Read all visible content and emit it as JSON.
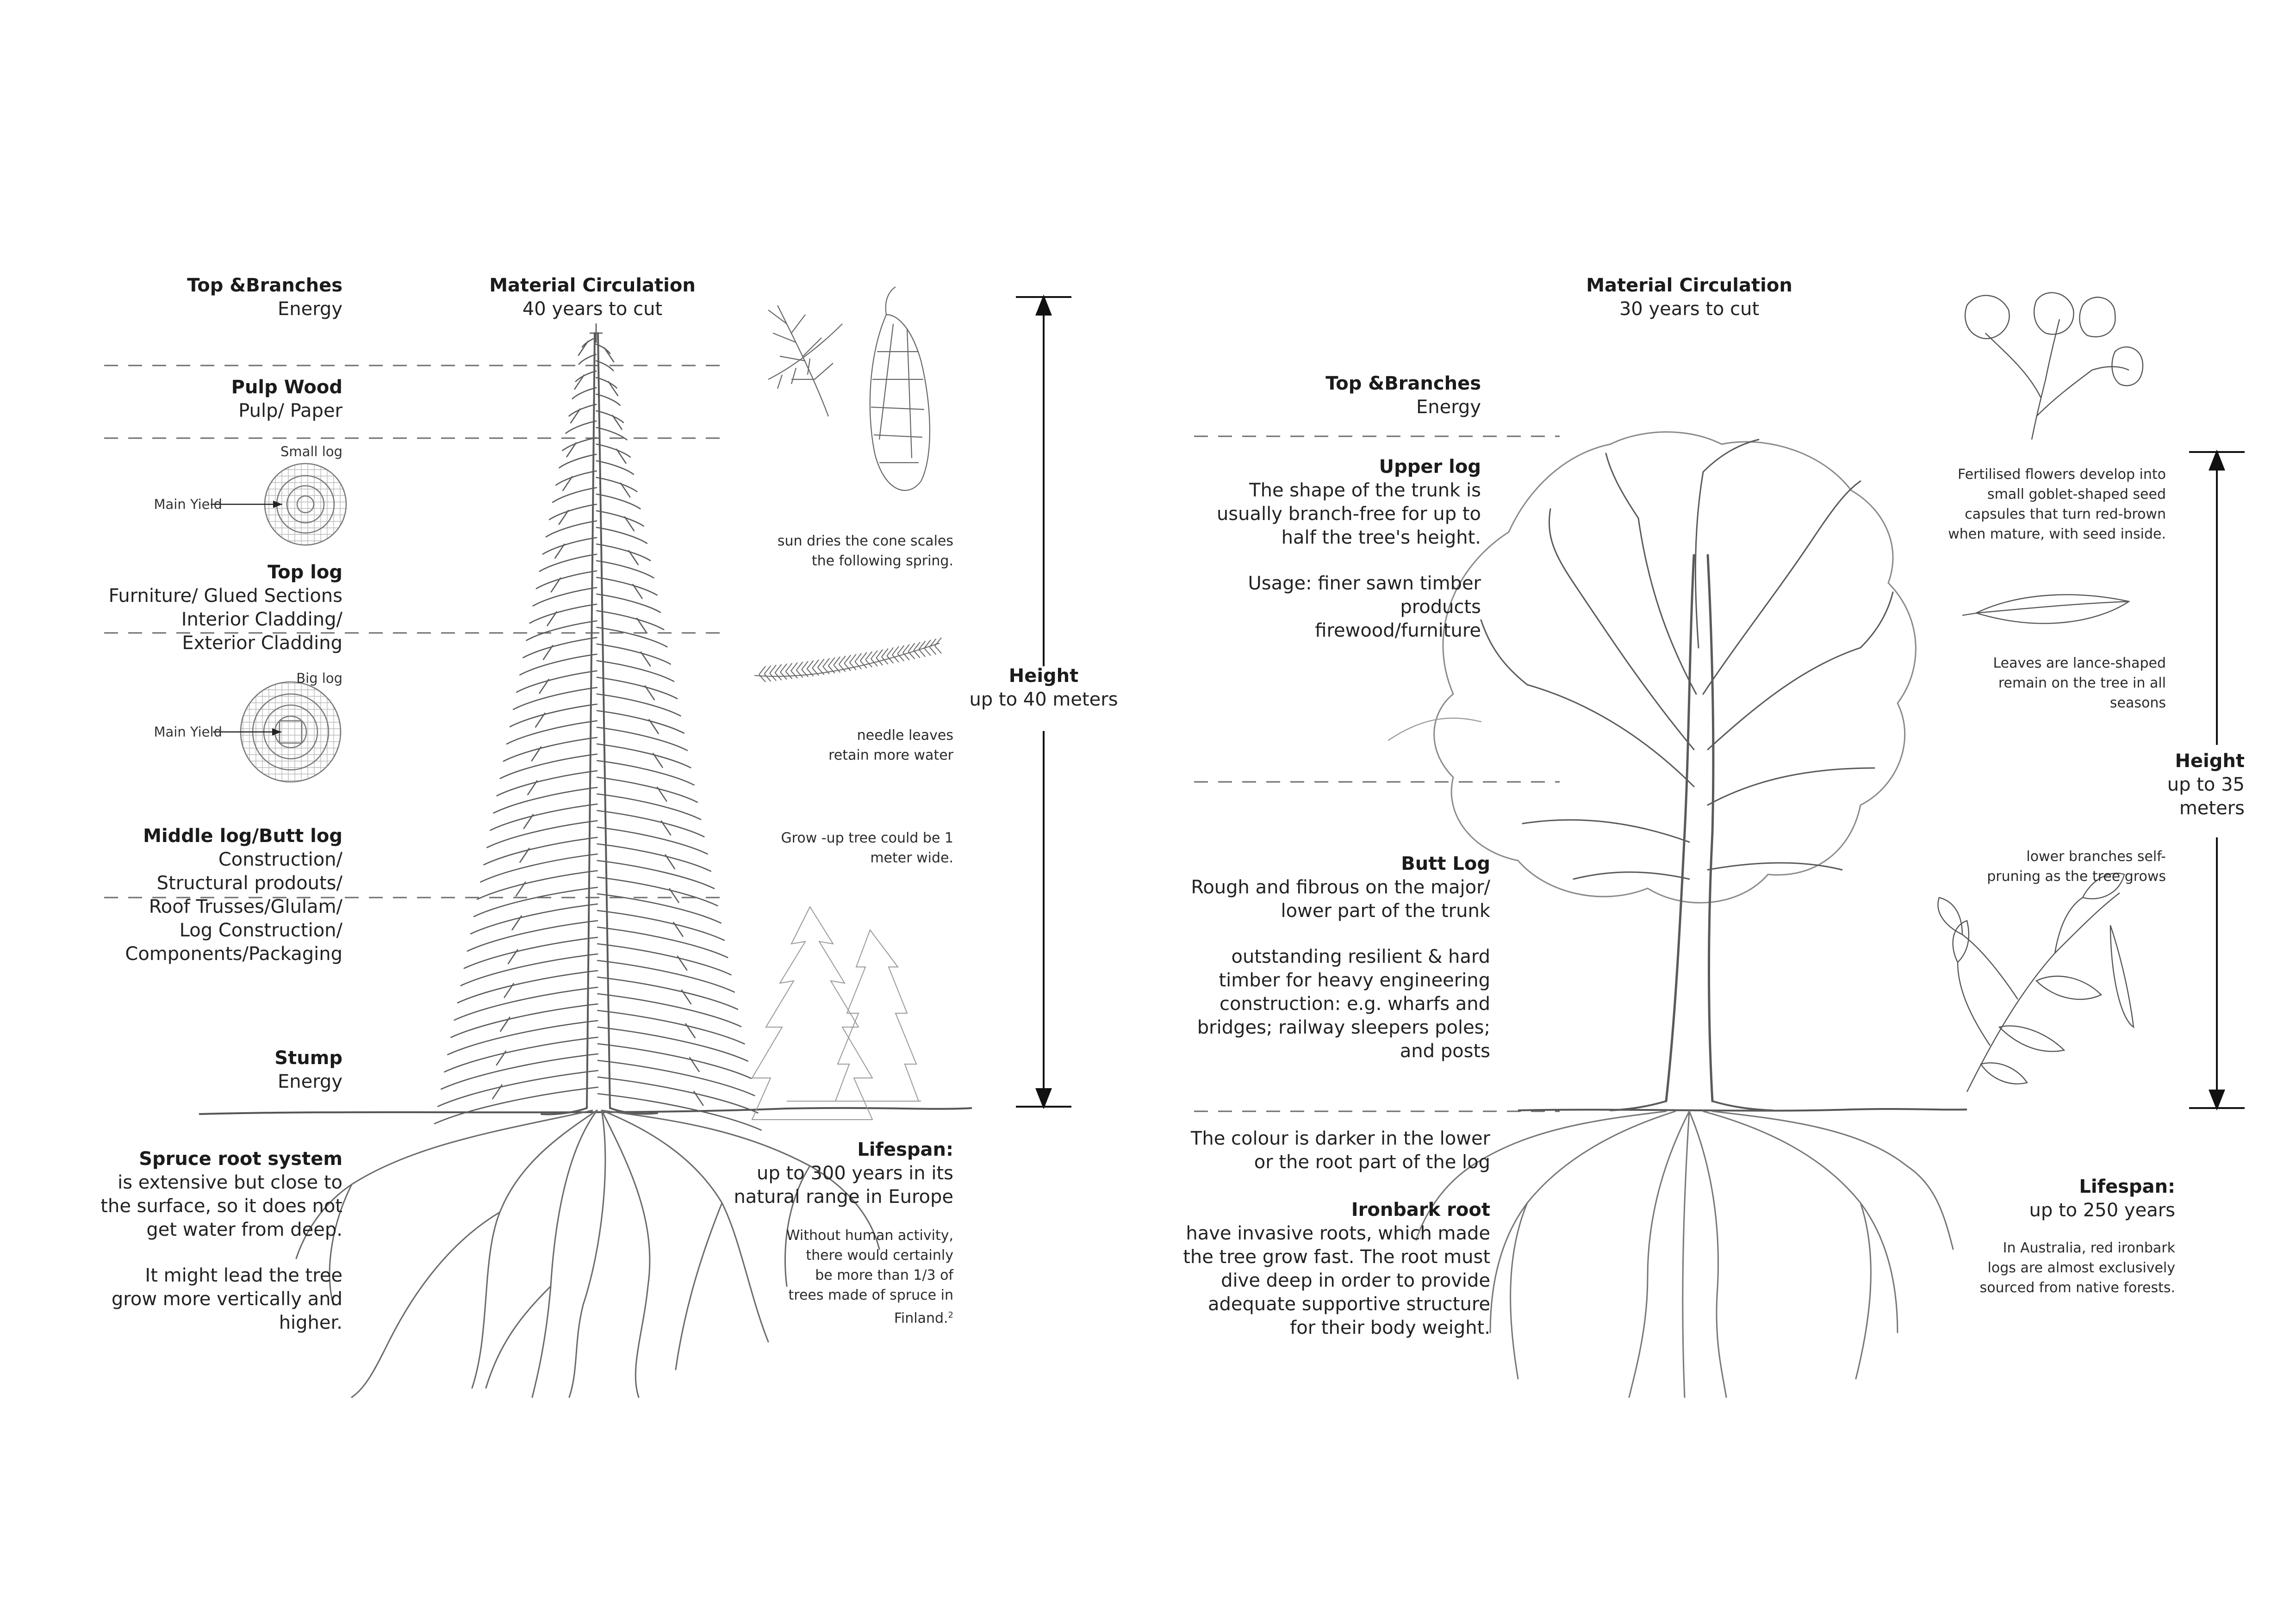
{
  "palette": {
    "ink": "#1b1b1b",
    "pencil": "#5a5a5a",
    "dash": "#6e6e6e",
    "paper": "#ffffff"
  },
  "spruce": {
    "top_branches": {
      "title": "Top &Branches",
      "use": "Energy"
    },
    "circulation": {
      "title": "Material Circulation",
      "value": "40 years to cut"
    },
    "pulp_wood": {
      "title": "Pulp Wood",
      "use": "Pulp/ Paper"
    },
    "small_log": {
      "label": "Small log",
      "yield": "Main Yield"
    },
    "top_log": {
      "title": "Top log",
      "use": "Furniture/ Glued Sections\nInterior Cladding/\nExterior Cladding"
    },
    "big_log": {
      "label": "Big log",
      "yield": "Main Yield"
    },
    "middle_log": {
      "title": "Middle log/Butt log",
      "use": "Construction/\nStructural prodouts/\nRoof Trusses/Glulam/\nLog Construction/\nComponents/Packaging"
    },
    "stump": {
      "title": "Stump",
      "use": "Energy"
    },
    "root": {
      "title": "Spruce root system",
      "text": "is extensive but close to\nthe surface, so it does not\nget water from deep.",
      "text2": "It might lead the tree\ngrow more vertically and\nhigher."
    },
    "height": {
      "title": "Height",
      "value": "up to 40 meters"
    },
    "cone_note": "sun dries the cone scales\nthe following spring.",
    "needle_note": "needle leaves\nretain more water",
    "grow_note": "Grow -up tree could be 1\nmeter wide.",
    "lifespan": {
      "title": "Lifespan:",
      "value": "up to 300 years in its\nnatural range in Europe",
      "note": "Without human activity,\nthere would certainly\nbe more than 1/3 of\ntrees  made of spruce in\nFinland.",
      "footnote": "2"
    }
  },
  "ironbark": {
    "circulation": {
      "title": "Material Circulation",
      "value": "30 years to cut"
    },
    "top_branches": {
      "title": "Top &Branches",
      "use": "Energy"
    },
    "upper_log": {
      "title": "Upper log",
      "text": "The shape of the trunk is\nusually branch-free for up to\nhalf the tree's height.",
      "usage": "Usage: finer sawn timber\nproducts\nfirewood/furniture"
    },
    "butt_log": {
      "title": "Butt Log",
      "text": "Rough and fibrous on the major/\nlower part of the trunk",
      "text2": "outstanding resilient & hard\ntimber for heavy engineering\nconstruction:  e.g. wharfs and\nbridges; railway sleepers poles;\nand posts"
    },
    "colour_note": "The colour is darker in the lower\nor the root part of the log",
    "root": {
      "title": "Ironbark root",
      "text": "have invasive roots, which made\nthe tree grow fast. The root must\ndive deep in order to  provide\nadequate supportive structure\nfor their body weight."
    },
    "flower_note": "Fertilised flowers develop into\nsmall goblet-shaped seed\ncapsules that turn red-brown\nwhen mature, with seed inside.",
    "leaf_note": "Leaves are lance-shaped\nremain on the tree in all\nseasons",
    "height": {
      "title": "Height",
      "value": "up to 35\nmeters"
    },
    "branch_note": "lower branches self-\npruning as the tree grows",
    "lifespan": {
      "title": "Lifespan:",
      "value": "up to 250 years",
      "note": "In Australia, red ironbark\nlogs are almost exclusively\nsourced from native forests."
    }
  }
}
